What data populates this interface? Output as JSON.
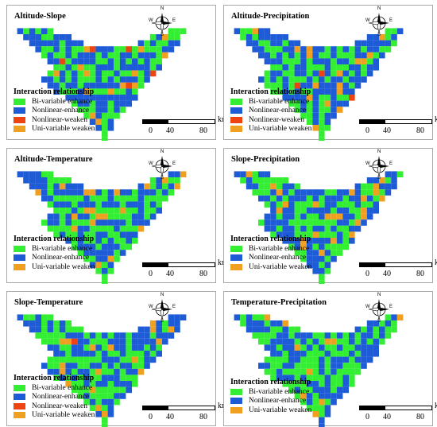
{
  "colors": {
    "bi_variable_enhance": "#33ee33",
    "nonlinear_enhance": "#1e5bd6",
    "nonlinear_weaken": "#ee4411",
    "uni_variable_weaken": "#f0a020"
  },
  "legend_title": "Interaction relationship",
  "legend_labels": {
    "bi": "Bi-variable enhance",
    "nle": "Nonlinear-enhance",
    "nlw": "Nonlinear-weaken",
    "uni": "Uni-variable weaken"
  },
  "scale": {
    "unit": "km",
    "ticks": [
      "0",
      "40",
      "80"
    ]
  },
  "compass": {
    "n": "N",
    "s": "S",
    "e": "E",
    "w": "W"
  },
  "panels": [
    {
      "title": "Altitude-Slope",
      "legend": [
        "bi",
        "nle",
        "nlw",
        "uni"
      ]
    },
    {
      "title": "Altitude-Precipitation",
      "legend": [
        "bi",
        "nle",
        "nlw",
        "uni"
      ]
    },
    {
      "title": "Altitude-Temperature",
      "legend": [
        "bi",
        "nle",
        "uni"
      ]
    },
    {
      "title": "Slope-Precipitation",
      "legend": [
        "bi",
        "nle",
        "uni"
      ]
    },
    {
      "title": "Slope-Temperature",
      "legend": [
        "bi",
        "nle",
        "nlw",
        "uni"
      ]
    },
    {
      "title": "Temperature-Precipitation",
      "legend": [
        "bi",
        "nle",
        "uni"
      ]
    }
  ]
}
